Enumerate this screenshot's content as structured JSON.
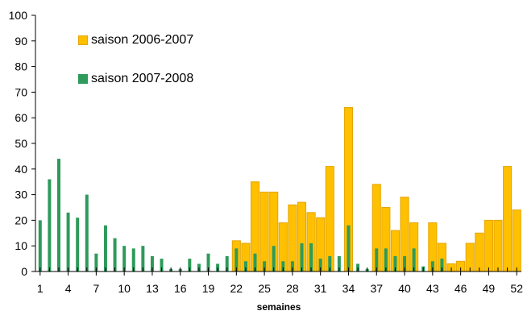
{
  "chart_data": {
    "type": "bar",
    "xlabel": "semaines",
    "ylabel": "",
    "ylim": [
      0,
      100
    ],
    "yticks": [
      0,
      10,
      20,
      30,
      40,
      50,
      60,
      70,
      80,
      90,
      100
    ],
    "xtick_labels": [
      "1",
      "4",
      "7",
      "10",
      "13",
      "16",
      "19",
      "22",
      "25",
      "28",
      "31",
      "34",
      "37",
      "40",
      "43",
      "46",
      "49",
      "52"
    ],
    "categories": [
      "1",
      "2",
      "3",
      "4",
      "5",
      "6",
      "7",
      "8",
      "9",
      "10",
      "11",
      "12",
      "13",
      "14",
      "15",
      "16",
      "17",
      "18",
      "19",
      "20",
      "21",
      "22",
      "23",
      "24",
      "25",
      "26",
      "27",
      "28",
      "29",
      "30",
      "31",
      "32",
      "33",
      "34",
      "35",
      "36",
      "37",
      "38",
      "39",
      "40",
      "41",
      "42",
      "43",
      "44",
      "45",
      "46",
      "47",
      "48",
      "49",
      "50",
      "51",
      "52"
    ],
    "series": [
      {
        "name": "saison 2006-2007",
        "color": "#FFC000",
        "values": [
          0,
          0,
          0,
          0,
          0,
          0,
          0,
          0,
          0,
          0,
          0,
          0,
          0,
          0,
          0,
          0,
          0,
          0,
          0,
          0,
          0,
          12,
          11,
          35,
          31,
          31,
          19,
          26,
          27,
          23,
          21,
          41,
          0,
          64,
          0,
          0,
          34,
          25,
          16,
          29,
          19,
          0,
          19,
          11,
          3,
          4,
          11,
          15,
          20,
          20,
          41,
          24
        ]
      },
      {
        "name": "saison 2007-2008",
        "color": "#2E9A5B",
        "values": [
          20,
          36,
          44,
          23,
          21,
          30,
          7,
          18,
          13,
          10,
          9,
          10,
          6,
          5,
          1,
          1,
          5,
          3,
          7,
          3,
          6,
          9,
          4,
          7,
          4,
          10,
          4,
          4,
          11,
          11,
          5,
          6,
          6,
          18,
          3,
          1,
          9,
          9,
          6,
          6,
          9,
          2,
          4,
          5,
          0,
          0,
          0,
          0,
          0,
          0,
          0,
          0
        ]
      }
    ]
  }
}
